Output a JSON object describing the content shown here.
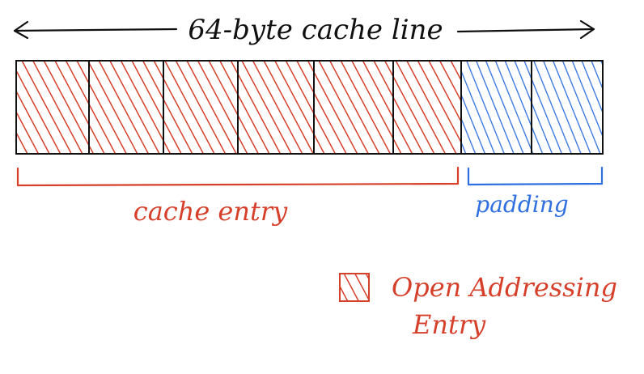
{
  "header": {
    "label": "64-byte cache line"
  },
  "cache_line": {
    "cells_total": 8,
    "entry_cells": 6,
    "padding_cells": 2
  },
  "brackets": {
    "entry_label": "cache entry",
    "padding_label": "padding"
  },
  "legend": {
    "line1": "Open Addressing",
    "line2": "Entry"
  },
  "colors": {
    "ink": "#111111",
    "entry": "#d6402b",
    "padding": "#2f6fe0"
  }
}
